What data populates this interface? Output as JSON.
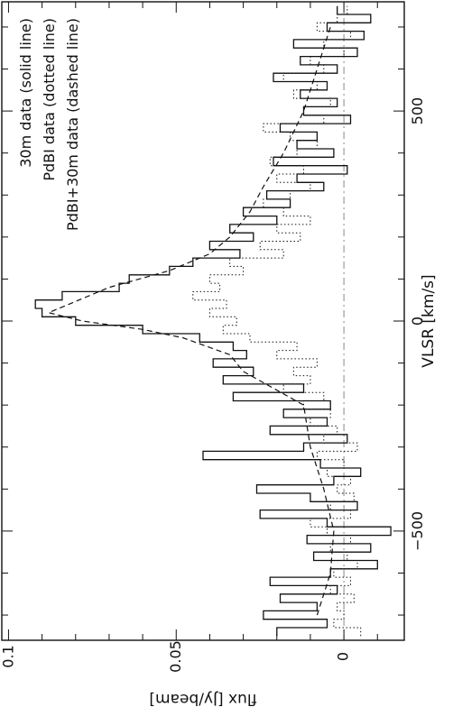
{
  "chart_data": {
    "type": "line",
    "orientation": "rotated-90-ccw",
    "xlabel": "VLSR [km/s]",
    "ylabel": "flux [Jy/beam]",
    "xlim": [
      -760,
      760
    ],
    "ylim": [
      -0.018,
      0.102
    ],
    "x_ticks": [
      -500,
      0,
      500
    ],
    "x_tick_labels": [
      "−500",
      "0",
      "500"
    ],
    "y_ticks": [
      0,
      0.05,
      0.1
    ],
    "y_tick_labels": [
      "0",
      "0.05",
      "0.1"
    ],
    "grid": false,
    "zero_line": true,
    "legend": {
      "placement": "top-left",
      "entries": [
        "30m data (solid line)",
        "PdBI data (dotted line)",
        "PdBI+30m data (dashed line)"
      ]
    },
    "series": [
      {
        "name": "30m data",
        "style": "solid",
        "x": [
          -740,
          -720,
          -700,
          -680,
          -660,
          -640,
          -620,
          -600,
          -580,
          -560,
          -540,
          -520,
          -500,
          -480,
          -460,
          -440,
          -420,
          -400,
          -380,
          -360,
          -340,
          -320,
          -300,
          -280,
          -260,
          -240,
          -220,
          -200,
          -180,
          -160,
          -140,
          -120,
          -100,
          -80,
          -60,
          -40,
          -20,
          0,
          20,
          40,
          60,
          80,
          100,
          120,
          140,
          160,
          180,
          200,
          220,
          240,
          260,
          280,
          300,
          320,
          340,
          360,
          380,
          400,
          420,
          440,
          460,
          480,
          500,
          520,
          540,
          560,
          580,
          600,
          620,
          640,
          660,
          680,
          700,
          720,
          740
        ],
        "values": [
          0.02,
          0.005,
          0.024,
          0.008,
          0.019,
          0.002,
          0.022,
          0.004,
          -0.01,
          0.009,
          -0.008,
          0.011,
          -0.014,
          0.005,
          0.025,
          -0.004,
          0.01,
          0.026,
          0.003,
          -0.005,
          0.007,
          0.042,
          0.012,
          -0.001,
          0.022,
          0.005,
          0.018,
          0.004,
          0.033,
          0.012,
          0.036,
          0.027,
          0.039,
          0.029,
          0.033,
          0.043,
          0.06,
          0.08,
          0.09,
          0.092,
          0.084,
          0.067,
          0.064,
          0.052,
          0.045,
          0.031,
          0.04,
          0.027,
          0.034,
          0.02,
          0.03,
          0.016,
          0.023,
          0.006,
          0.014,
          -0.001,
          0.021,
          0.003,
          0.014,
          0.008,
          0.019,
          -0.002,
          0.012,
          0.002,
          0.013,
          0.005,
          0.021,
          0.002,
          0.013,
          -0.004,
          0.015,
          -0.006,
          0.005,
          -0.008,
          0.002
        ]
      },
      {
        "name": "PdBI data",
        "style": "dotted",
        "x": [
          -740,
          -720,
          -700,
          -680,
          -660,
          -640,
          -620,
          -600,
          -580,
          -560,
          -540,
          -520,
          -500,
          -480,
          -460,
          -440,
          -420,
          -400,
          -380,
          -360,
          -340,
          -320,
          -300,
          -280,
          -260,
          -240,
          -220,
          -200,
          -180,
          -160,
          -140,
          -120,
          -100,
          -80,
          -60,
          -40,
          -20,
          0,
          20,
          40,
          60,
          80,
          100,
          120,
          140,
          160,
          180,
          200,
          220,
          240,
          260,
          280,
          300,
          320,
          340,
          360,
          380,
          400,
          420,
          440,
          460,
          480,
          500,
          520,
          540,
          560,
          580,
          600,
          620,
          640,
          660,
          680,
          700,
          720,
          740
        ],
        "values": [
          -0.005,
          0.003,
          0.0,
          0.002,
          -0.003,
          0.004,
          -0.002,
          0.003,
          -0.004,
          -0.001,
          0.004,
          -0.002,
          0.005,
          0.01,
          -0.002,
          0.004,
          -0.003,
          0.002,
          -0.002,
          0.005,
          0.0,
          0.008,
          -0.004,
          0.006,
          0.002,
          0.01,
          0.004,
          0.012,
          0.006,
          0.018,
          0.01,
          0.015,
          0.008,
          0.02,
          0.014,
          0.028,
          0.036,
          0.032,
          0.04,
          0.035,
          0.045,
          0.037,
          0.04,
          0.03,
          0.034,
          0.018,
          0.025,
          0.013,
          0.02,
          0.01,
          0.018,
          0.024,
          0.016,
          0.01,
          0.02,
          0.012,
          0.022,
          0.014,
          0.008,
          0.016,
          0.024,
          0.006,
          0.012,
          0.004,
          0.015,
          0.008,
          0.018,
          0.006,
          0.01,
          0.0,
          0.006,
          -0.002,
          0.008,
          0.002,
          -0.001
        ]
      },
      {
        "name": "PdBI+30m data",
        "style": "dashed",
        "x": [
          -700,
          -600,
          -500,
          -400,
          -300,
          -200,
          -120,
          -80,
          -40,
          -20,
          0,
          20,
          40,
          80,
          120,
          160,
          200,
          260,
          320,
          400,
          500,
          600,
          700
        ],
        "values": [
          0.008,
          0.004,
          0.003,
          0.006,
          0.01,
          0.012,
          0.03,
          0.034,
          0.048,
          0.06,
          0.078,
          0.088,
          0.082,
          0.07,
          0.052,
          0.04,
          0.034,
          0.028,
          0.024,
          0.018,
          0.012,
          0.008,
          0.004
        ]
      }
    ]
  }
}
